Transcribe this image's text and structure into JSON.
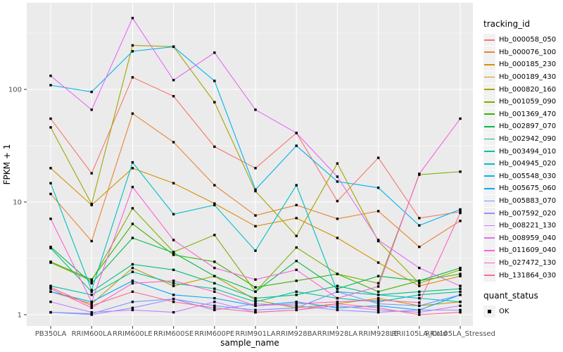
{
  "chart_data": {
    "type": "line",
    "title": "",
    "xlabel": "sample_name",
    "ylabel": "FPKM + 1",
    "y_scale": "log10",
    "y_ticks": [
      1,
      10,
      100
    ],
    "y_minor_ticks": [
      3.162,
      31.62,
      316.2
    ],
    "ylim": [
      0.79,
      590
    ],
    "grid": "on",
    "legend_position": "right",
    "point_marker": "filled-black-square",
    "categories": [
      "PB350LA",
      "RRIM600LA",
      "RRIM600LE",
      "RRIM600SE",
      "RRIM600PE",
      "RRIM901LA",
      "RRIM928BA",
      "RRIM928LA",
      "RRIM928LE",
      "RRII105LA_Cold",
      "RRII105LA_Stressed"
    ],
    "series": [
      {
        "name": "Hb_000058_050",
        "color": "#F8766D",
        "values": [
          55,
          18,
          128,
          87,
          31,
          20,
          41,
          10.2,
          24.7,
          7.2,
          8.2
        ]
      },
      {
        "name": "Hb_000076_100",
        "color": "#EA8331",
        "values": [
          11.8,
          4.5,
          61,
          34,
          14.1,
          7.6,
          9.4,
          7.1,
          8.3,
          4.0,
          6.8
        ]
      },
      {
        "name": "Hb_000185_230",
        "color": "#D89000",
        "values": [
          20,
          9.4,
          20,
          14.7,
          9.7,
          6.1,
          7.2,
          4.8,
          2.9,
          1.8,
          2.2
        ]
      },
      {
        "name": "Hb_000189_430",
        "color": "#C09B00",
        "values": [
          1.6,
          1.25,
          2.6,
          1.8,
          2.2,
          1.35,
          1.15,
          1.25,
          1.4,
          1.2,
          1.3
        ]
      },
      {
        "name": "Hb_000820_160",
        "color": "#A3A500",
        "values": [
          46,
          9.6,
          246,
          240,
          77,
          12.5,
          5.0,
          22,
          4.5,
          1.9,
          2.5
        ]
      },
      {
        "name": "Hb_001059_090",
        "color": "#7CAE00",
        "values": [
          2.9,
          2.0,
          8.8,
          3.6,
          5.1,
          1.6,
          3.95,
          2.3,
          1.9,
          17.5,
          18.6
        ]
      },
      {
        "name": "Hb_001369_470",
        "color": "#39B600",
        "values": [
          2.95,
          2.05,
          6.4,
          3.4,
          2.95,
          1.75,
          2.0,
          2.3,
          1.6,
          2.0,
          2.3
        ]
      },
      {
        "name": "Hb_002897_070",
        "color": "#00BB4E",
        "values": [
          4.0,
          1.9,
          4.8,
          3.55,
          2.2,
          1.6,
          3.0,
          1.7,
          2.2,
          2.0,
          2.6
        ]
      },
      {
        "name": "Hb_002942_090",
        "color": "#00BF7D",
        "values": [
          3.9,
          1.6,
          2.8,
          2.5,
          1.9,
          1.4,
          1.5,
          1.8,
          1.5,
          1.6,
          1.7
        ]
      },
      {
        "name": "Hb_003494_010",
        "color": "#00C1A3",
        "values": [
          1.8,
          1.5,
          2.4,
          1.9,
          1.7,
          1.3,
          1.6,
          1.4,
          1.3,
          1.5,
          1.6
        ]
      },
      {
        "name": "Hb_004945_020",
        "color": "#00BFC4",
        "values": [
          14.7,
          1.65,
          22.5,
          7.8,
          9.4,
          3.7,
          14.1,
          1.6,
          1.5,
          1.4,
          1.3
        ]
      },
      {
        "name": "Hb_005548_030",
        "color": "#00B4F0",
        "values": [
          109,
          95,
          218,
          239,
          119,
          12.9,
          31.6,
          15.2,
          13.4,
          6.2,
          8.6
        ]
      },
      {
        "name": "Hb_005675_060",
        "color": "#00A9FF",
        "values": [
          1.6,
          1.3,
          2.0,
          1.5,
          1.4,
          1.2,
          1.3,
          1.15,
          1.2,
          1.1,
          1.5
        ]
      },
      {
        "name": "Hb_005883_070",
        "color": "#7197FF",
        "values": [
          1.05,
          1.02,
          1.3,
          1.38,
          1.2,
          1.1,
          1.15,
          1.6,
          1.25,
          1.2,
          1.5
        ]
      },
      {
        "name": "Hb_007592_020",
        "color": "#9590FF",
        "values": [
          1.05,
          1.0,
          1.15,
          1.38,
          1.1,
          1.25,
          1.2,
          1.1,
          1.05,
          1.1,
          1.1
        ]
      },
      {
        "name": "Hb_008221_130",
        "color": "#C77CFF",
        "values": [
          1.3,
          1.05,
          1.1,
          1.05,
          1.3,
          1.05,
          1.1,
          1.2,
          1.1,
          1.05,
          1.2
        ]
      },
      {
        "name": "Hb_008959_040",
        "color": "#E76BF3",
        "values": [
          132,
          66,
          430,
          121,
          212,
          66,
          41,
          16.8,
          4.6,
          2.6,
          1.8
        ]
      },
      {
        "name": "Hb_011609_040",
        "color": "#FA62DB",
        "values": [
          7.1,
          1.3,
          13.6,
          4.6,
          2.6,
          2.05,
          2.5,
          1.4,
          1.78,
          17.8,
          55
        ]
      },
      {
        "name": "Hb_027472_130",
        "color": "#FF62BC",
        "values": [
          1.7,
          1.15,
          1.9,
          2.0,
          1.6,
          1.2,
          1.25,
          1.3,
          1.35,
          1.28,
          8.0
        ]
      },
      {
        "name": "Hb_131864_030",
        "color": "#FF6A98",
        "values": [
          1.75,
          1.2,
          1.6,
          1.3,
          1.15,
          1.05,
          1.1,
          1.25,
          1.15,
          1.0,
          1.05
        ]
      }
    ],
    "legends": {
      "color_title": "tracking_id",
      "shape_title": "quant_status",
      "shape_items": [
        {
          "label": "OK",
          "marker": "black-square"
        }
      ]
    }
  },
  "theme": {
    "panel_bg": "#EBEBEB",
    "grid_major": "#FFFFFF",
    "grid_minor": "#F7F7F7",
    "tick_text": "#4D4D4D",
    "axis_title_text": "#000000",
    "point_color": "#000000",
    "legend_key_bg": "#F2F2F2"
  }
}
